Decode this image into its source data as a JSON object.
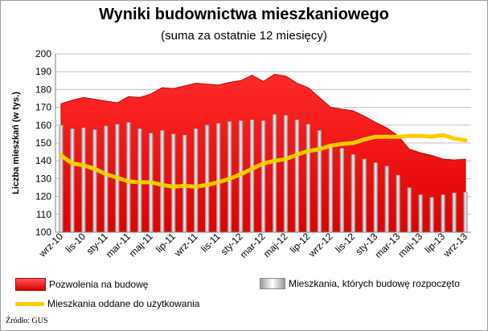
{
  "colors": {
    "permits_fill": "#ff0000",
    "permits_edge": "#c00000",
    "started_bar": "#b8b8b8",
    "completed_line": "#ffcc00",
    "grid": "#bfbfbf"
  },
  "chart_data": {
    "type": "area",
    "title": "Wyniki budownictwa mieszkaniowego",
    "subtitle": "(suma za ostatnie 12 miesięcy)",
    "ylabel": "Liczba  mieszkań  (w tys.)",
    "xlabel": "",
    "ylim": [
      100,
      200
    ],
    "yticks": [
      "100",
      "110",
      "120",
      "130",
      "140",
      "150",
      "160",
      "170",
      "180",
      "190",
      "200"
    ],
    "grid": true,
    "legend_position": "bottom",
    "categories": [
      "wrz-10",
      "paź-10",
      "lis-10",
      "gru-10",
      "sty-11",
      "lut-11",
      "mar-11",
      "kwi-11",
      "maj-11",
      "cze-11",
      "lip-11",
      "sie-11",
      "wrz-11",
      "paź-11",
      "lis-11",
      "gru-11",
      "sty-12",
      "lut-12",
      "mar-12",
      "kwi-12",
      "maj-12",
      "cze-12",
      "lip-12",
      "sie-12",
      "wrz-12",
      "paź-12",
      "lis-12",
      "gru-12",
      "sty-13",
      "lut-13",
      "mar-13",
      "kwi-13",
      "maj-13",
      "cze-13",
      "lip-13",
      "sie-13",
      "wrz-13"
    ],
    "xtick_labels": [
      "wrz-10",
      "lis-10",
      "sty-11",
      "mar-11",
      "maj-11",
      "lip-11",
      "wrz-11",
      "lis-11",
      "sty-12",
      "mar-12",
      "maj-12",
      "lip-12",
      "wrz-12",
      "lis-12",
      "sty-13",
      "mar-13",
      "maj-13",
      "lip-13",
      "wrz-13"
    ],
    "series": [
      {
        "name": "Pozwolenia na budowę",
        "kind": "area",
        "values": [
          172,
          174,
          175.5,
          174.5,
          173.5,
          172.5,
          176,
          175.5,
          177.5,
          181,
          180.5,
          182,
          183.5,
          183,
          182.5,
          184,
          185,
          188,
          184.5,
          188.5,
          187.5,
          183.5,
          181,
          175.5,
          170,
          169,
          168,
          165,
          161.5,
          158.5,
          154,
          146.5,
          144.5,
          143,
          141,
          140.5,
          141
        ]
      },
      {
        "name": "Mieszkania, których budowę rozpoczęto",
        "kind": "bar",
        "values": [
          160,
          158,
          158.5,
          157.5,
          159.5,
          160.5,
          161.5,
          158,
          155.5,
          157,
          155,
          154.5,
          158,
          160,
          161,
          162,
          162.5,
          163,
          162.5,
          166,
          165.5,
          163,
          160.5,
          157,
          148,
          147,
          143.5,
          141,
          139,
          137,
          132,
          125,
          121,
          119.5,
          121,
          122,
          122.5
        ]
      },
      {
        "name": "Mieszkania oddane do użytkowania",
        "kind": "line",
        "values": [
          143,
          138.5,
          137.5,
          135.5,
          132.5,
          130.5,
          128.5,
          128,
          128,
          126.5,
          125.5,
          126,
          125.5,
          126.5,
          128,
          130,
          132.5,
          135.5,
          138.5,
          140,
          141,
          143.5,
          145.5,
          146.5,
          148.5,
          149.5,
          150,
          152,
          153.5,
          153.5,
          153.5,
          154,
          154,
          153.5,
          154.5,
          152.5,
          151.5
        ]
      }
    ],
    "source_note": "Źródło: GUS"
  }
}
